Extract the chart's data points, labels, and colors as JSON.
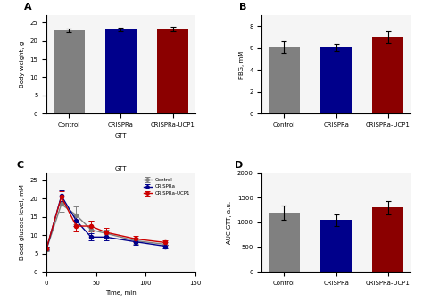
{
  "panel_A": {
    "title": "A",
    "categories": [
      "Control",
      "CRISPRa",
      "CRISPRa-UCP1"
    ],
    "values": [
      22.8,
      23.0,
      23.2
    ],
    "errors": [
      0.4,
      0.5,
      0.6
    ],
    "colors": [
      "#808080",
      "#00008B",
      "#8B0000"
    ],
    "ylabel": "Body weight, g",
    "xlabel": "GTT",
    "ylim": [
      0,
      27
    ],
    "yticks": [
      0,
      5,
      10,
      15,
      20,
      25
    ]
  },
  "panel_B": {
    "title": "B",
    "categories": [
      "Control",
      "CRISPRa",
      "CRISPRa-UCP1"
    ],
    "values": [
      6.1,
      6.05,
      7.0
    ],
    "errors": [
      0.55,
      0.3,
      0.55
    ],
    "colors": [
      "#808080",
      "#00008B",
      "#8B0000"
    ],
    "ylabel": "FBG, mM",
    "ylim": [
      0,
      9
    ],
    "yticks": [
      0,
      2,
      4,
      6,
      8
    ]
  },
  "panel_C": {
    "title": "C",
    "subtitle": "GTT",
    "xlabel": "Time, min",
    "ylabel": "Blood glucose level, mM",
    "ylim": [
      0,
      27
    ],
    "yticks": [
      0,
      5,
      10,
      15,
      20,
      25
    ],
    "xlim": [
      0,
      150
    ],
    "xticks": [
      0,
      50,
      100,
      150
    ],
    "timepoints": [
      0,
      15,
      30,
      45,
      60,
      90,
      120
    ],
    "control_values": [
      6.2,
      18.5,
      15.5,
      11.5,
      10.5,
      8.5,
      7.5
    ],
    "control_errors": [
      0.5,
      2.0,
      2.5,
      2.5,
      1.0,
      0.8,
      0.7
    ],
    "crispra_values": [
      6.3,
      20.8,
      14.0,
      9.5,
      9.5,
      8.2,
      7.0
    ],
    "crispra_errors": [
      0.4,
      1.5,
      1.5,
      1.0,
      1.0,
      0.8,
      0.5
    ],
    "ucp1_values": [
      6.5,
      20.5,
      12.5,
      12.5,
      10.8,
      9.0,
      8.0
    ],
    "ucp1_errors": [
      0.4,
      1.5,
      1.5,
      1.5,
      1.2,
      0.9,
      0.6
    ],
    "control_color": "#808080",
    "crispra_color": "#00008B",
    "ucp1_color": "#CC0000",
    "legend_labels": [
      "Control",
      "CRISPRa",
      "CRISPRa-UCP1"
    ]
  },
  "panel_D": {
    "title": "D",
    "categories": [
      "Control",
      "CRISPRa",
      "CRISPRa-UCP1"
    ],
    "values": [
      1200,
      1050,
      1300
    ],
    "errors": [
      150,
      120,
      130
    ],
    "colors": [
      "#808080",
      "#00008B",
      "#8B0000"
    ],
    "ylabel": "AUC GTT, a.u.",
    "ylim": [
      0,
      2000
    ],
    "yticks": [
      0,
      500,
      1000,
      1500,
      2000
    ]
  },
  "background_color": "#f5f5f5"
}
